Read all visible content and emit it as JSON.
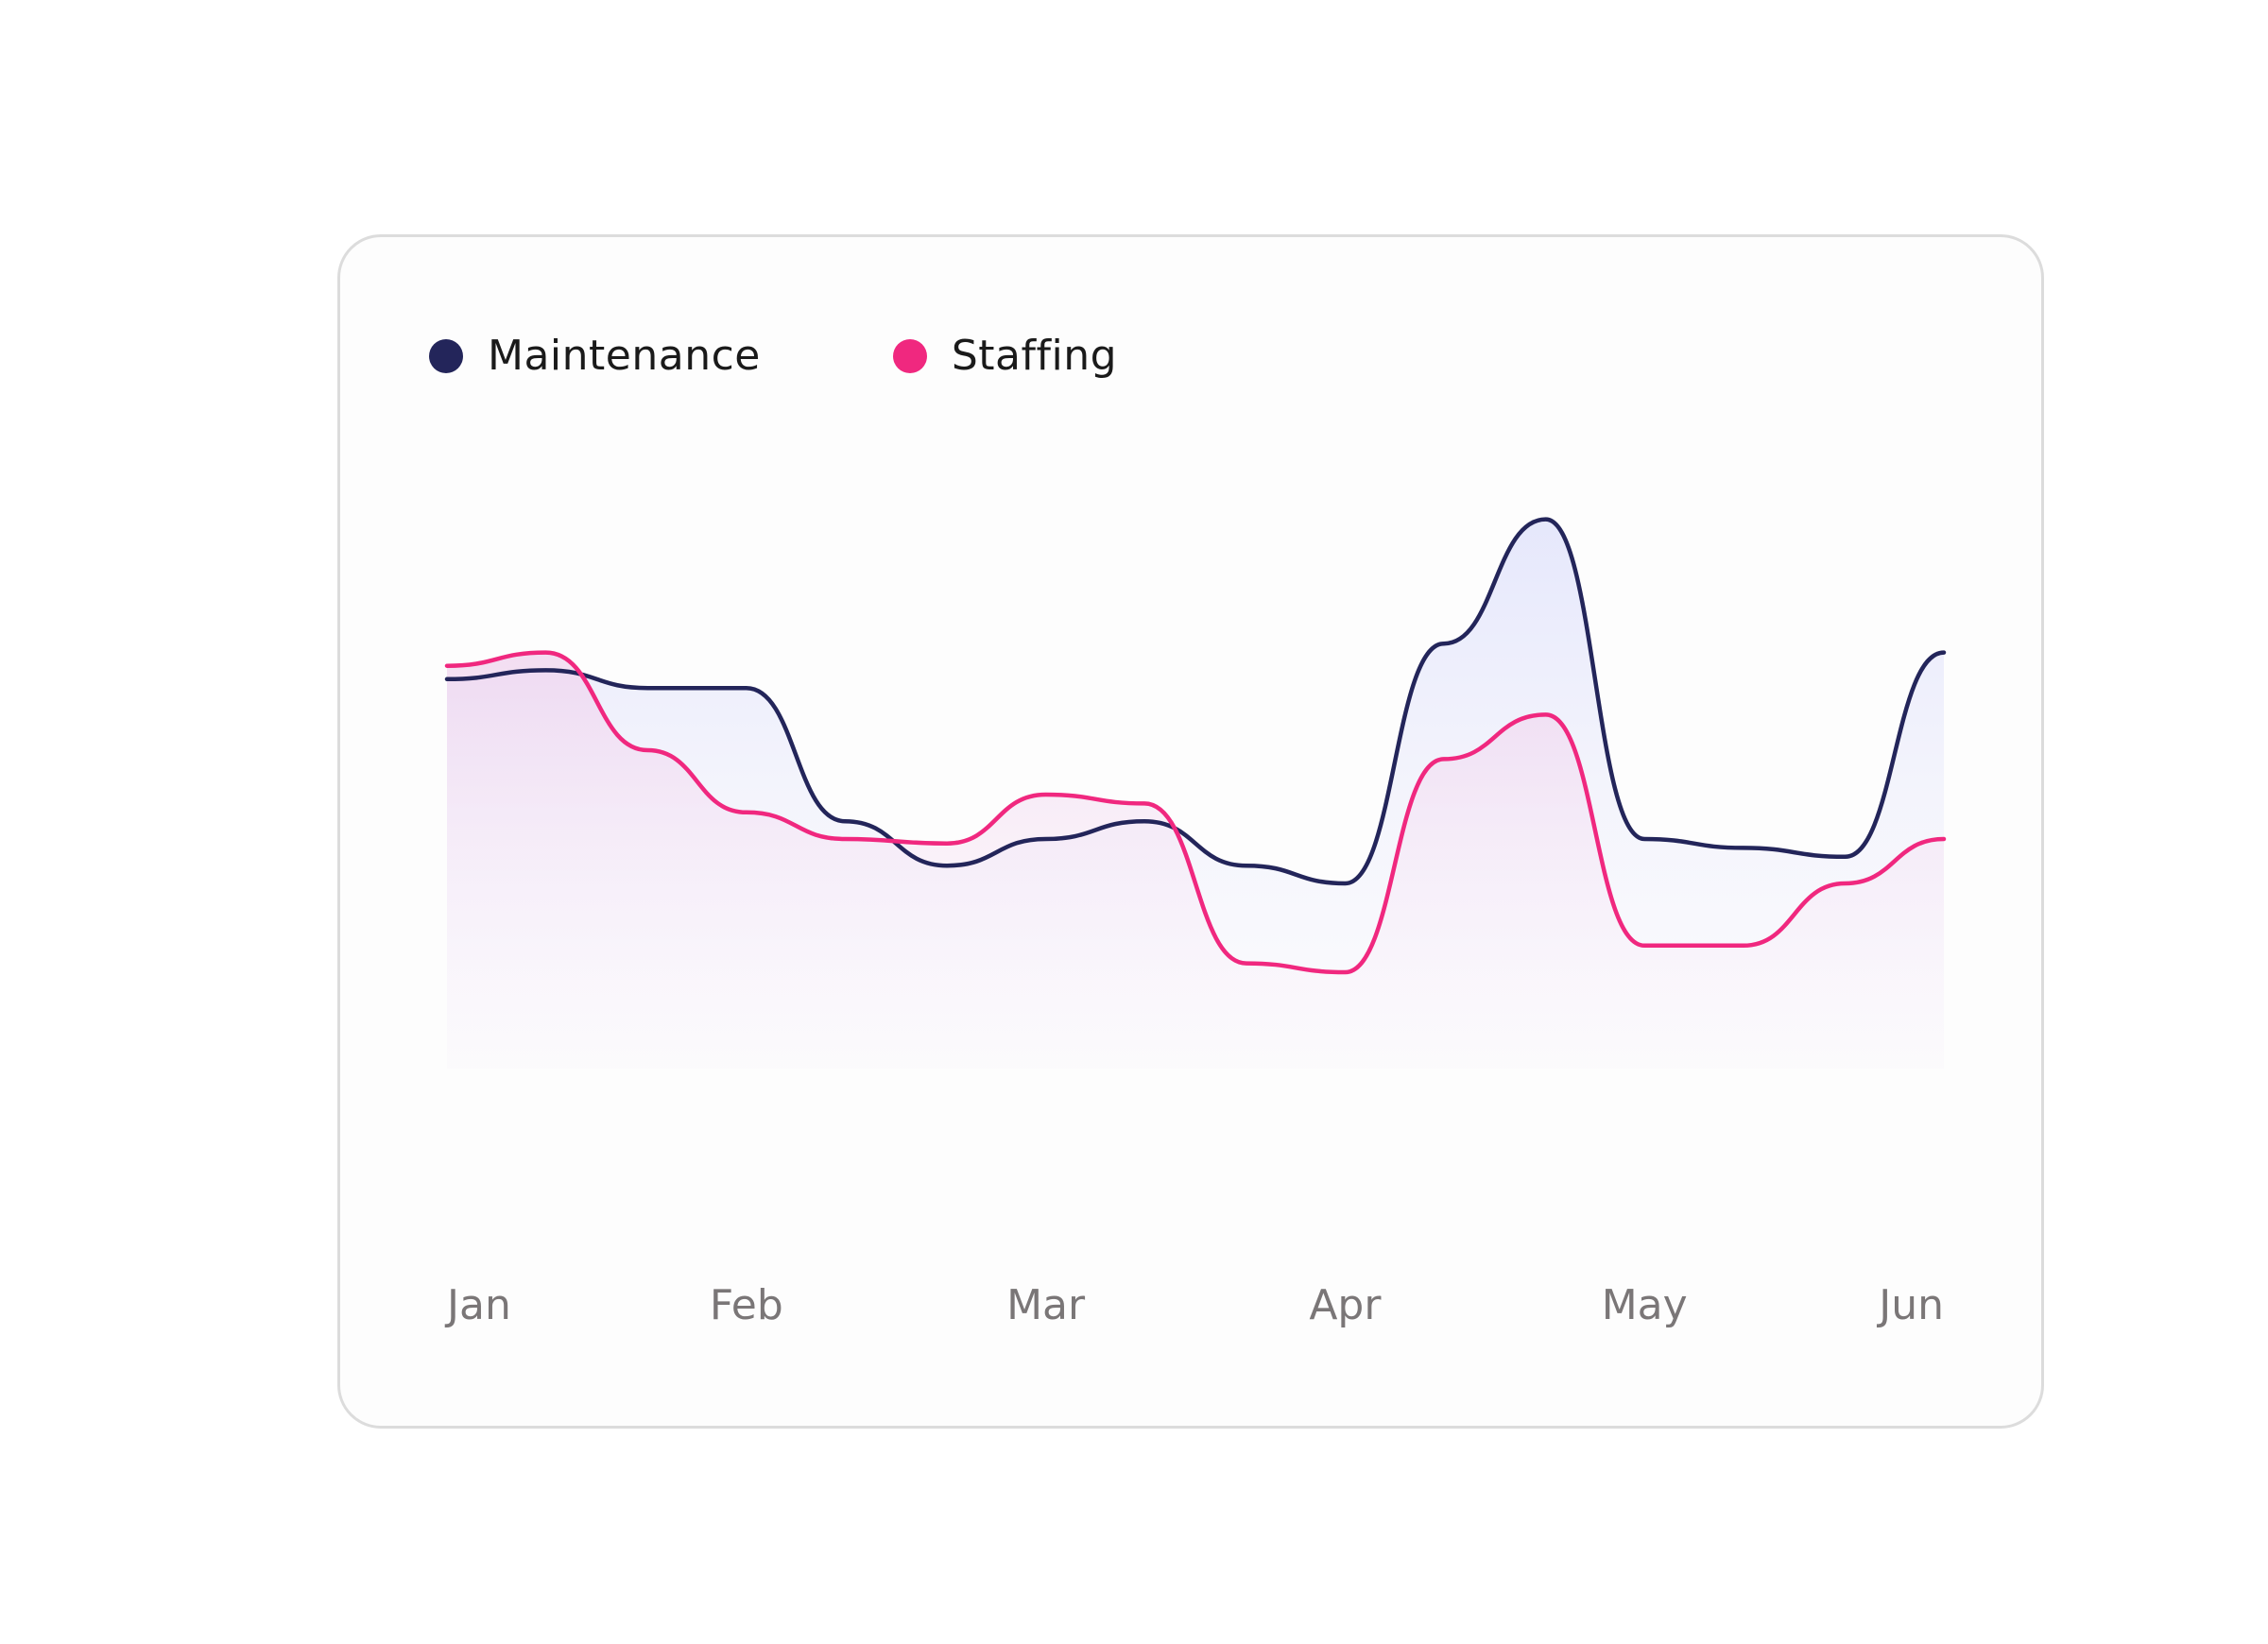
{
  "legend": {
    "items": [
      {
        "label": "Maintenance",
        "color": "#23255a"
      },
      {
        "label": "Staffing",
        "color": "#f0287f"
      }
    ]
  },
  "chart_data": {
    "type": "area",
    "title": "",
    "xlabel": "",
    "ylabel": "",
    "grid": false,
    "legend_position": "top-left",
    "categories": [
      "Jan",
      "Feb",
      "Mar",
      "Apr",
      "May",
      "Jun"
    ],
    "x": [
      0,
      0.33,
      0.67,
      1.0,
      1.33,
      1.67,
      2.0,
      2.33,
      2.67,
      3.0,
      3.33,
      3.67,
      4.0,
      4.33,
      4.67,
      5.0
    ],
    "ylim": [
      0,
      100
    ],
    "series": [
      {
        "name": "Maintenance",
        "color": "#23255a",
        "fill_color": "#e4e6fb",
        "values": [
          63,
          64,
          62,
          62,
          47,
          42,
          45,
          47,
          42,
          40,
          67,
          81,
          45,
          44,
          43,
          66
        ]
      },
      {
        "name": "Staffing",
        "color": "#f0287f",
        "fill_color": "#f4d6ef",
        "values": [
          64.5,
          66,
          55,
          48,
          45,
          44.5,
          50,
          49,
          31,
          30,
          54,
          59,
          33,
          33,
          40,
          45
        ]
      }
    ]
  }
}
